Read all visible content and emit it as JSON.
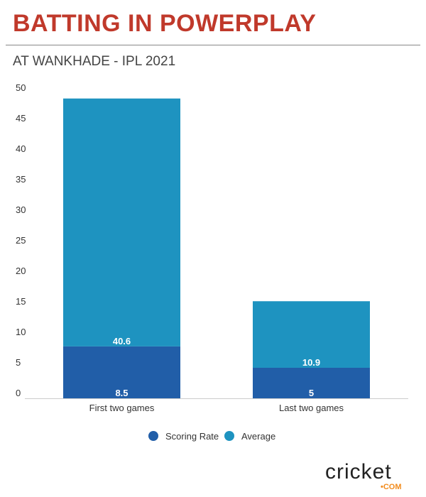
{
  "chart_data": {
    "type": "bar",
    "stacked": true,
    "title": "BATTING IN POWERPLAY",
    "subtitle": "AT WANKHADE - IPL 2021",
    "categories": [
      "First two games",
      "Last two games"
    ],
    "series": [
      {
        "name": "Scoring Rate",
        "values": [
          8.5,
          5
        ],
        "color": "#215ea8"
      },
      {
        "name": "Average",
        "values": [
          40.6,
          10.9
        ],
        "color": "#1e93c0"
      }
    ],
    "ylim": [
      0,
      50
    ],
    "yticks": [
      "0",
      "5",
      "10",
      "15",
      "20",
      "25",
      "30",
      "35",
      "40",
      "45",
      "50"
    ],
    "legend": "bottom-center",
    "grid": false
  },
  "logo": {
    "word": "cricket",
    "domain": "•COM"
  }
}
